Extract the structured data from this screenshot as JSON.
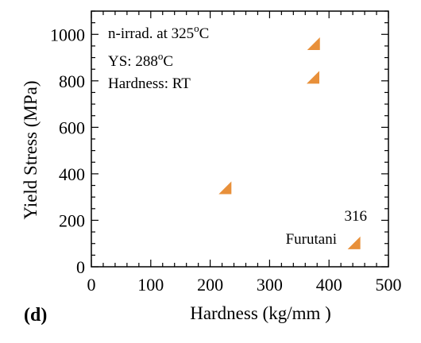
{
  "chart_data": {
    "type": "scatter",
    "title": "",
    "xlabel": "Hardness (kg/mm )",
    "ylabel": "Yield Stress (MPa)",
    "xlim": [
      0,
      500
    ],
    "ylim": [
      0,
      1100
    ],
    "x_ticks": [
      0,
      100,
      200,
      300,
      400,
      500
    ],
    "y_ticks": [
      0,
      200,
      400,
      600,
      800,
      1000
    ],
    "grid": false,
    "marker": "triangle",
    "marker_color": "#E8903A",
    "series": [
      {
        "name": "",
        "points": [
          {
            "x": 225,
            "y": 340
          },
          {
            "x": 373,
            "y": 815
          },
          {
            "x": 374,
            "y": 960
          },
          {
            "x": 442,
            "y": 103
          }
        ]
      }
    ],
    "annotations": {
      "line1_main": "n-irrad. at 325",
      "line1_sup": "o",
      "line1_tail": "C",
      "line2_main": "YS:  288",
      "line2_sup": "o",
      "line2_tail": "C",
      "line3": "Hardness:  RT",
      "legend_top": "316",
      "legend_bottom": "Furutani",
      "panel_label": "(d)"
    }
  }
}
